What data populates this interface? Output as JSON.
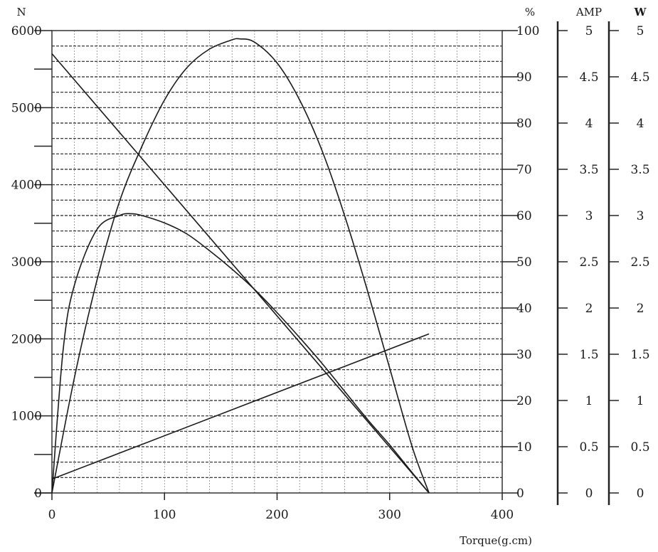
{
  "chart_data": {
    "type": "line",
    "xlabel": "Torque(g.cm)",
    "x_ticks": [
      "0",
      "100",
      "200",
      "300",
      "400"
    ],
    "xlim": [
      0,
      400
    ],
    "grid": true,
    "axes": {
      "speed": {
        "unit": "N",
        "ticks": [
          "0",
          "1000",
          "2000",
          "3000",
          "4000",
          "5000",
          "6000"
        ],
        "range": [
          0,
          6000
        ]
      },
      "efficiency": {
        "unit": "%",
        "ticks": [
          "0",
          "10",
          "20",
          "30",
          "40",
          "50",
          "60",
          "70",
          "80",
          "90",
          "100"
        ],
        "range": [
          0,
          100
        ]
      },
      "current": {
        "unit": "AMP",
        "ticks": [
          "0",
          "0.5",
          "1",
          "1.5",
          "2",
          "2.5",
          "3",
          "3.5",
          "4",
          "4.5",
          "5"
        ],
        "range": [
          0,
          5
        ]
      },
      "power": {
        "unit": "W",
        "ticks": [
          "0",
          "0.5",
          "1",
          "1.5",
          "2",
          "2.5",
          "3",
          "3.5",
          "4",
          "4.5",
          "5"
        ],
        "range": [
          0,
          5
        ]
      }
    },
    "series": [
      {
        "axis": "speed",
        "x": [
          0,
          335
        ],
        "y": [
          5700,
          0
        ]
      },
      {
        "axis": "current",
        "x": [
          0,
          335
        ],
        "y": [
          0.15,
          1.72
        ]
      },
      {
        "axis": "power",
        "x": [
          0,
          10,
          20,
          40,
          60,
          70,
          80,
          100,
          120,
          140,
          160,
          180,
          200,
          220,
          240,
          260,
          280,
          300,
          320,
          335
        ],
        "y": [
          0,
          1.55,
          2.25,
          2.85,
          3.0,
          3.02,
          3.0,
          2.92,
          2.8,
          2.62,
          2.42,
          2.2,
          1.95,
          1.68,
          1.4,
          1.1,
          0.8,
          0.52,
          0.22,
          0
        ]
      },
      {
        "axis": "efficiency",
        "x": [
          0,
          20,
          40,
          60,
          80,
          100,
          120,
          140,
          160,
          167,
          180,
          200,
          220,
          240,
          260,
          280,
          300,
          320,
          335
        ],
        "y": [
          0,
          25,
          46,
          63,
          75,
          85,
          92,
          96,
          98,
          98.2,
          97.5,
          93,
          85,
          74,
          60,
          44,
          27,
          10,
          0
        ]
      }
    ]
  }
}
